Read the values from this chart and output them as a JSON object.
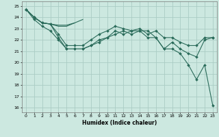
{
  "xlabel": "Humidex (Indice chaleur)",
  "ylabel": "",
  "bg_color": "#cce8e0",
  "grid_color": "#aaccC4",
  "line_color": "#2a6b5a",
  "xlim": [
    -0.5,
    23.5
  ],
  "ylim": [
    15.6,
    25.4
  ],
  "yticks": [
    16,
    17,
    18,
    19,
    20,
    21,
    22,
    23,
    24,
    25
  ],
  "xticks": [
    0,
    1,
    2,
    3,
    4,
    5,
    6,
    7,
    8,
    9,
    10,
    11,
    12,
    13,
    14,
    15,
    16,
    17,
    18,
    19,
    20,
    21,
    22,
    23
  ],
  "lines": [
    {
      "x": [
        0,
        1,
        2,
        3,
        4,
        5,
        6,
        7,
        8,
        9,
        10,
        11,
        12,
        13,
        14,
        15,
        16,
        17,
        18,
        19,
        20,
        21,
        22,
        23
      ],
      "y": [
        24.7,
        24.0,
        23.5,
        23.4,
        22.2,
        21.2,
        21.2,
        21.2,
        21.5,
        21.8,
        22.2,
        22.5,
        22.8,
        22.5,
        22.8,
        22.2,
        22.2,
        21.2,
        21.8,
        21.2,
        20.8,
        20.5,
        22.0,
        22.2
      ],
      "has_markers": true
    },
    {
      "x": [
        0,
        1,
        2,
        3,
        4,
        5,
        6,
        7,
        8,
        9,
        10,
        11,
        12,
        13,
        14,
        15,
        16,
        17,
        18,
        19,
        20,
        21,
        22,
        23
      ],
      "y": [
        24.7,
        24.0,
        23.5,
        23.4,
        22.5,
        21.5,
        21.5,
        21.5,
        22.0,
        22.5,
        22.8,
        23.2,
        23.0,
        22.8,
        23.0,
        22.5,
        22.8,
        22.2,
        22.2,
        21.8,
        21.5,
        21.5,
        22.2,
        22.2
      ],
      "has_markers": true
    },
    {
      "x": [
        0,
        1,
        2,
        3,
        4,
        5,
        6,
        7
      ],
      "y": [
        24.7,
        24.0,
        23.5,
        23.4,
        23.2,
        23.2,
        23.5,
        23.8
      ],
      "has_markers": false
    },
    {
      "x": [
        0,
        1,
        2,
        3,
        4,
        5,
        6
      ],
      "y": [
        24.7,
        24.0,
        23.5,
        23.4,
        23.3,
        23.3,
        23.5
      ],
      "has_markers": false
    },
    {
      "x": [
        0,
        1,
        2,
        3,
        4,
        5,
        6,
        7,
        8,
        9,
        10,
        11,
        12,
        13,
        14,
        15,
        16,
        17,
        18,
        19,
        20,
        21,
        22,
        23
      ],
      "y": [
        24.7,
        23.8,
        23.2,
        22.8,
        22.0,
        21.2,
        21.2,
        21.2,
        21.5,
        22.0,
        22.2,
        22.8,
        22.5,
        22.8,
        22.8,
        22.8,
        22.2,
        21.2,
        21.2,
        20.8,
        19.8,
        18.5,
        19.8,
        16.2
      ],
      "has_markers": true
    }
  ],
  "marker": "D",
  "markersize": 2.0,
  "linewidth": 0.8
}
